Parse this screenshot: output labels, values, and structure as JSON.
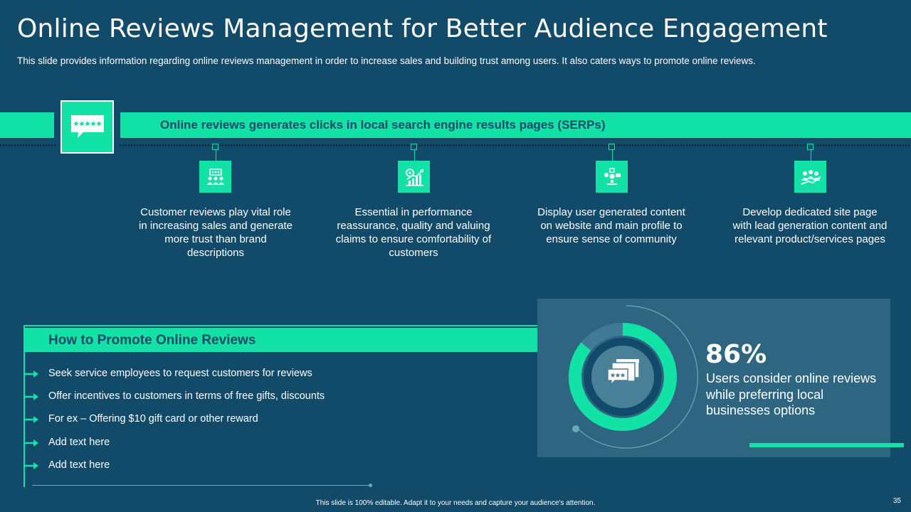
{
  "title": "Online Reviews Management for Better Audience Engagement",
  "subtitle": "This slide provides information regarding online reviews management in order to increase sales and building trust among users. It also caters ways to promote online reviews.",
  "banner": {
    "text": "Online reviews generates clicks in local search engine results pages (SERPs)",
    "icon": "review-stars-chat-icon"
  },
  "columns": [
    {
      "icon": "team-meeting-icon",
      "text": "Customer reviews play vital role in increasing sales and generate more trust than brand descriptions"
    },
    {
      "icon": "performance-growth-icon",
      "text": "Essential in performance reassurance, quality and valuing claims to ensure comfortability of customers"
    },
    {
      "icon": "community-content-icon",
      "text": "Display user generated content on website and main profile to ensure sense of community"
    },
    {
      "icon": "lead-generation-icon",
      "text": "Develop dedicated site page with lead generation content and relevant product/services pages"
    }
  ],
  "promote": {
    "title": "How to Promote Online Reviews",
    "items": [
      "Seek service employees to request customers for reviews",
      "Offer incentives to customers in terms of free gifts, discounts",
      "For ex – Offering $10 gift card or other reward",
      "Add text here",
      "Add text here"
    ]
  },
  "stat": {
    "value": "86%",
    "fraction": 0.86,
    "description": "Users consider online reviews while preferring local businesses options",
    "icon": "browser-review-icon"
  },
  "footer": "This slide is 100% editable. Adapt it to your needs and capture your audience's attention.",
  "page_number": "35",
  "colors": {
    "background": "#124a6a",
    "accent": "#12e2a6",
    "panel": "#2e6682",
    "text": "#ffffff"
  }
}
